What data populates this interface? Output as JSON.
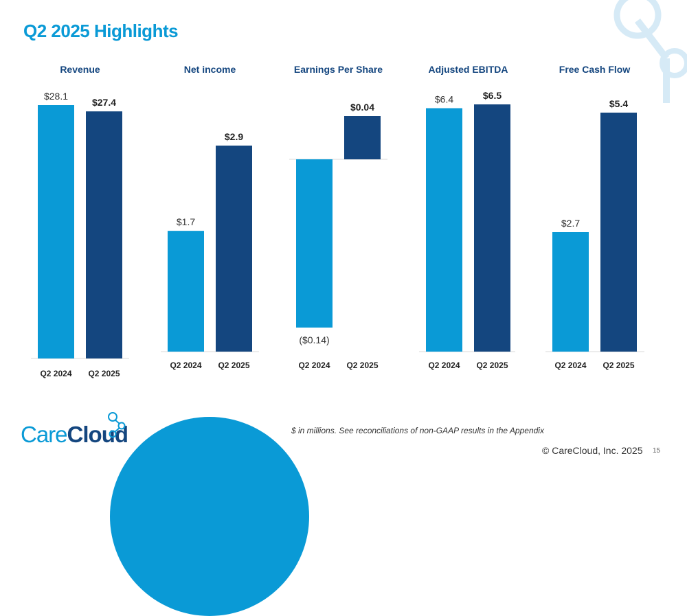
{
  "title": "Q2 2025 Highlights",
  "footnote": "$ in millions. See reconciliations of non-GAAP results in the Appendix",
  "copyright": "© CareCloud, Inc. 2025",
  "page_number": "15",
  "logo": {
    "part1": "Care",
    "part2": "Cloud"
  },
  "colors": {
    "q2_2024": "#0a9ad6",
    "q2_2025": "#14467f",
    "title": "#0a9ad6"
  },
  "chart_data": [
    {
      "type": "bar",
      "title": "Revenue",
      "categories": [
        "Q2 2024",
        "Q2 2025"
      ],
      "values": [
        28.1,
        27.4
      ],
      "labels": [
        "$28.1",
        "$27.4"
      ]
    },
    {
      "type": "bar",
      "title": "Net income",
      "categories": [
        "Q2 2024",
        "Q2 2025"
      ],
      "values": [
        1.7,
        2.9
      ],
      "labels": [
        "$1.7",
        "$2.9"
      ]
    },
    {
      "type": "bar",
      "title": "Earnings Per Share",
      "categories": [
        "Q2 2024",
        "Q2 2025"
      ],
      "values": [
        -0.14,
        0.04
      ],
      "labels": [
        "($0.14)",
        "$0.04"
      ]
    },
    {
      "type": "bar",
      "title": "Adjusted EBITDA",
      "categories": [
        "Q2 2024",
        "Q2 2025"
      ],
      "values": [
        6.4,
        6.5
      ],
      "labels": [
        "$6.4",
        "$6.5"
      ]
    },
    {
      "type": "bar",
      "title": "Free Cash Flow",
      "categories": [
        "Q2 2024",
        "Q2 2025"
      ],
      "values": [
        2.7,
        5.4
      ],
      "labels": [
        "$2.7",
        "$5.4"
      ]
    }
  ]
}
